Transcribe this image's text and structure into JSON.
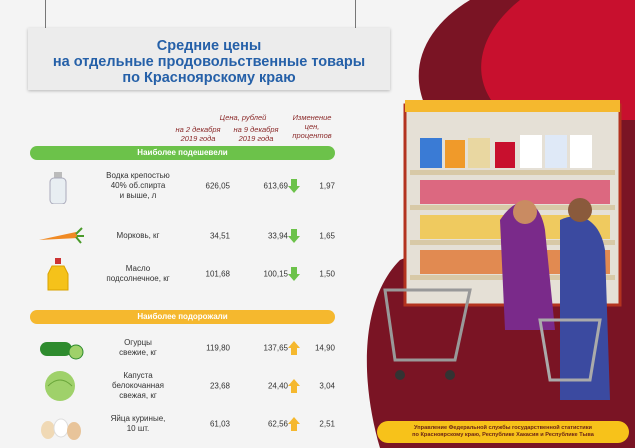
{
  "title": {
    "line1": "Средние цены",
    "line2": "на отдельные продовольственные товары",
    "line3": "по Красноярскому краю"
  },
  "headers": {
    "price": "Цена, рублей",
    "date1_l1": "на 2 декабря",
    "date1_l2": "2019 года",
    "date2_l1": "на 9 декабря",
    "date2_l2": "2019 года",
    "change_l1": "Изменение",
    "change_l2": "цен,",
    "change_l3": "процентов"
  },
  "sections": [
    {
      "label": "Наиболее подешевели",
      "color": "#6cc24a",
      "direction": "down",
      "arrow_color": "#6cc24a",
      "rows": [
        {
          "name_l1": "Водка крепостью",
          "name_l2": "40% об.спирта",
          "name_l3": "и выше, л",
          "price1": "626,05",
          "price2": "613,69",
          "change": "1,97",
          "icon": "vodka-bottle"
        },
        {
          "name_l1": "Морковь, кг",
          "name_l2": "",
          "name_l3": "",
          "price1": "34,51",
          "price2": "33,94",
          "change": "1,65",
          "icon": "carrot"
        },
        {
          "name_l1": "Масло",
          "name_l2": "подсолнечное, кг",
          "name_l3": "",
          "price1": "101,68",
          "price2": "100,15",
          "change": "1,50",
          "icon": "oil-bottle"
        }
      ]
    },
    {
      "label": "Наиболее подорожали",
      "color": "#f5b82e",
      "direction": "up",
      "arrow_color": "#f5b82e",
      "rows": [
        {
          "name_l1": "Огурцы",
          "name_l2": "свежие, кг",
          "name_l3": "",
          "price1": "119,80",
          "price2": "137,65",
          "change": "14,90",
          "icon": "cucumber"
        },
        {
          "name_l1": "Капуста",
          "name_l2": "белокочанная",
          "name_l3": "свежая, кг",
          "price1": "23,68",
          "price2": "24,40",
          "change": "3,04",
          "icon": "cabbage"
        },
        {
          "name_l1": "Яйца куриные,",
          "name_l2": "10 шт.",
          "name_l3": "",
          "price1": "61,03",
          "price2": "62,56",
          "change": "2,51",
          "icon": "eggs"
        }
      ]
    }
  ],
  "footer": {
    "line1": "Управление Федеральной службы государственной статистики",
    "line2": "по Красноярскому краю, Республике Хакасия и Республике Тыва"
  },
  "colors": {
    "title": "#2560a8",
    "background_right": "#7a1424",
    "accent_red": "#c8102e"
  }
}
